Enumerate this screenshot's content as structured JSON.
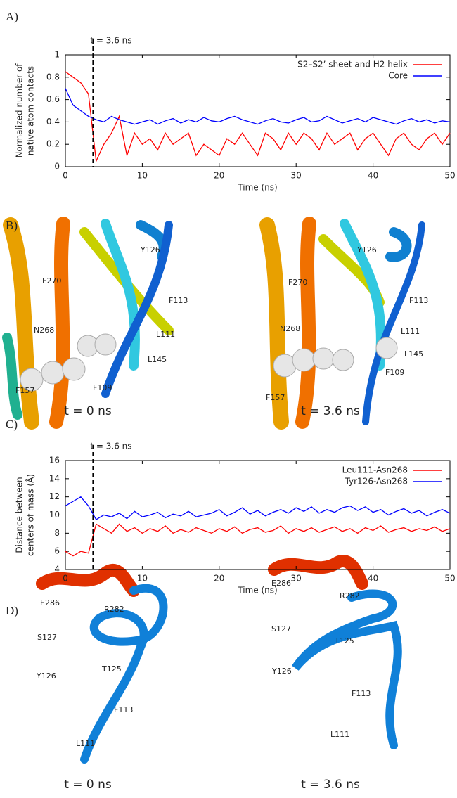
{
  "chart_data": [
    {
      "type": "line",
      "ylabel": [
        "Normalized number of",
        "native atom contacts"
      ],
      "xlabel": "Time (ns)",
      "x": [
        0,
        1,
        2,
        3,
        4,
        5,
        6,
        7,
        8,
        9,
        10,
        11,
        12,
        13,
        14,
        15,
        16,
        17,
        18,
        19,
        20,
        21,
        22,
        23,
        24,
        25,
        26,
        27,
        28,
        29,
        30,
        31,
        32,
        33,
        34,
        35,
        36,
        37,
        38,
        39,
        40,
        41,
        42,
        43,
        44,
        45,
        46,
        47,
        48,
        49,
        50
      ],
      "series": [
        {
          "name": "S2–S2’ sheet and H2 helix",
          "color": "#ff0000",
          "values": [
            0.85,
            0.8,
            0.75,
            0.65,
            0.05,
            0.2,
            0.3,
            0.45,
            0.1,
            0.3,
            0.2,
            0.25,
            0.15,
            0.3,
            0.2,
            0.25,
            0.3,
            0.1,
            0.2,
            0.15,
            0.1,
            0.25,
            0.2,
            0.3,
            0.2,
            0.1,
            0.3,
            0.25,
            0.15,
            0.3,
            0.2,
            0.3,
            0.25,
            0.15,
            0.3,
            0.2,
            0.25,
            0.3,
            0.15,
            0.25,
            0.3,
            0.2,
            0.1,
            0.25,
            0.3,
            0.2,
            0.15,
            0.25,
            0.3,
            0.2,
            0.3
          ]
        },
        {
          "name": "Core",
          "color": "#0000ff",
          "values": [
            0.7,
            0.55,
            0.5,
            0.45,
            0.42,
            0.4,
            0.45,
            0.42,
            0.4,
            0.38,
            0.4,
            0.42,
            0.38,
            0.41,
            0.43,
            0.39,
            0.42,
            0.4,
            0.44,
            0.41,
            0.4,
            0.43,
            0.45,
            0.42,
            0.4,
            0.38,
            0.41,
            0.43,
            0.4,
            0.39,
            0.42,
            0.44,
            0.4,
            0.41,
            0.45,
            0.42,
            0.39,
            0.41,
            0.43,
            0.4,
            0.44,
            0.42,
            0.4,
            0.38,
            0.41,
            0.43,
            0.4,
            0.42,
            0.39,
            0.41,
            0.4
          ]
        }
      ],
      "xlim": [
        0,
        50
      ],
      "xticks": [
        0,
        10,
        20,
        30,
        40,
        50
      ],
      "ylim": [
        0,
        1
      ],
      "yticks": [
        0,
        0.2,
        0.4,
        0.6,
        0.8,
        1
      ],
      "vline": {
        "x": 3.6,
        "label": "t = 3.6 ns"
      },
      "legend": "upper right"
    },
    {
      "type": "line",
      "ylabel": [
        "Distance between",
        "centers of mass (Å)"
      ],
      "xlabel": "Time (ns)",
      "x": [
        0,
        1,
        2,
        3,
        4,
        5,
        6,
        7,
        8,
        9,
        10,
        11,
        12,
        13,
        14,
        15,
        16,
        17,
        18,
        19,
        20,
        21,
        22,
        23,
        24,
        25,
        26,
        27,
        28,
        29,
        30,
        31,
        32,
        33,
        34,
        35,
        36,
        37,
        38,
        39,
        40,
        41,
        42,
        43,
        44,
        45,
        46,
        47,
        48,
        49,
        50
      ],
      "series": [
        {
          "name": "Leu111-Asn268",
          "color": "#ff0000",
          "values": [
            6,
            5.5,
            6,
            5.8,
            9,
            8.5,
            8,
            9,
            8.2,
            8.6,
            8,
            8.5,
            8.2,
            8.8,
            8,
            8.4,
            8.1,
            8.6,
            8.3,
            8,
            8.5,
            8.2,
            8.7,
            8,
            8.4,
            8.6,
            8.1,
            8.3,
            8.8,
            8,
            8.5,
            8.2,
            8.6,
            8.1,
            8.4,
            8.7,
            8.2,
            8.5,
            8,
            8.6,
            8.3,
            8.8,
            8.1,
            8.4,
            8.6,
            8.2,
            8.5,
            8.3,
            8.7,
            8.2,
            8.5
          ]
        },
        {
          "name": "Tyr126-Asn268",
          "color": "#0000ff",
          "values": [
            11,
            11.5,
            12,
            11,
            9.5,
            10,
            9.8,
            10.2,
            9.6,
            10.4,
            9.8,
            10,
            10.3,
            9.7,
            10.1,
            9.9,
            10.4,
            9.8,
            10,
            10.2,
            10.6,
            9.9,
            10.3,
            10.8,
            10.1,
            10.5,
            9.9,
            10.3,
            10.6,
            10.2,
            10.8,
            10.4,
            10.9,
            10.2,
            10.6,
            10.3,
            10.8,
            11,
            10.5,
            10.9,
            10.3,
            10.6,
            10,
            10.4,
            10.7,
            10.2,
            10.5,
            9.9,
            10.3,
            10.6,
            10.2
          ]
        }
      ],
      "xlim": [
        0,
        50
      ],
      "xticks": [
        0,
        10,
        20,
        30,
        40,
        50
      ],
      "ylim": [
        4,
        16
      ],
      "yticks": [
        4,
        6,
        8,
        10,
        12,
        14,
        16
      ],
      "vline": {
        "x": 3.6,
        "label": "t = 3.6 ns"
      },
      "legend": "upper right"
    }
  ],
  "panels": {
    "labels": [
      "A)",
      "B)",
      "C)",
      "D)"
    ],
    "B": {
      "captions": [
        "t = 0 ns",
        "t = 3.6 ns"
      ],
      "residues": [
        [
          "F270",
          "Y126",
          "F113",
          "N268",
          "L111",
          "L145",
          "F157",
          "F109"
        ],
        [
          "F270",
          "Y126",
          "F113",
          "N268",
          "L111",
          "L145",
          "F157",
          "F109"
        ]
      ]
    },
    "D": {
      "captions": [
        "t = 0 ns",
        "t = 3.6 ns"
      ],
      "residues": [
        [
          "E286",
          "R282",
          "S127",
          "T125",
          "Y126",
          "F113",
          "L111"
        ],
        [
          "E286",
          "R282",
          "S127",
          "T125",
          "Y126",
          "F113",
          "L111"
        ]
      ]
    }
  }
}
